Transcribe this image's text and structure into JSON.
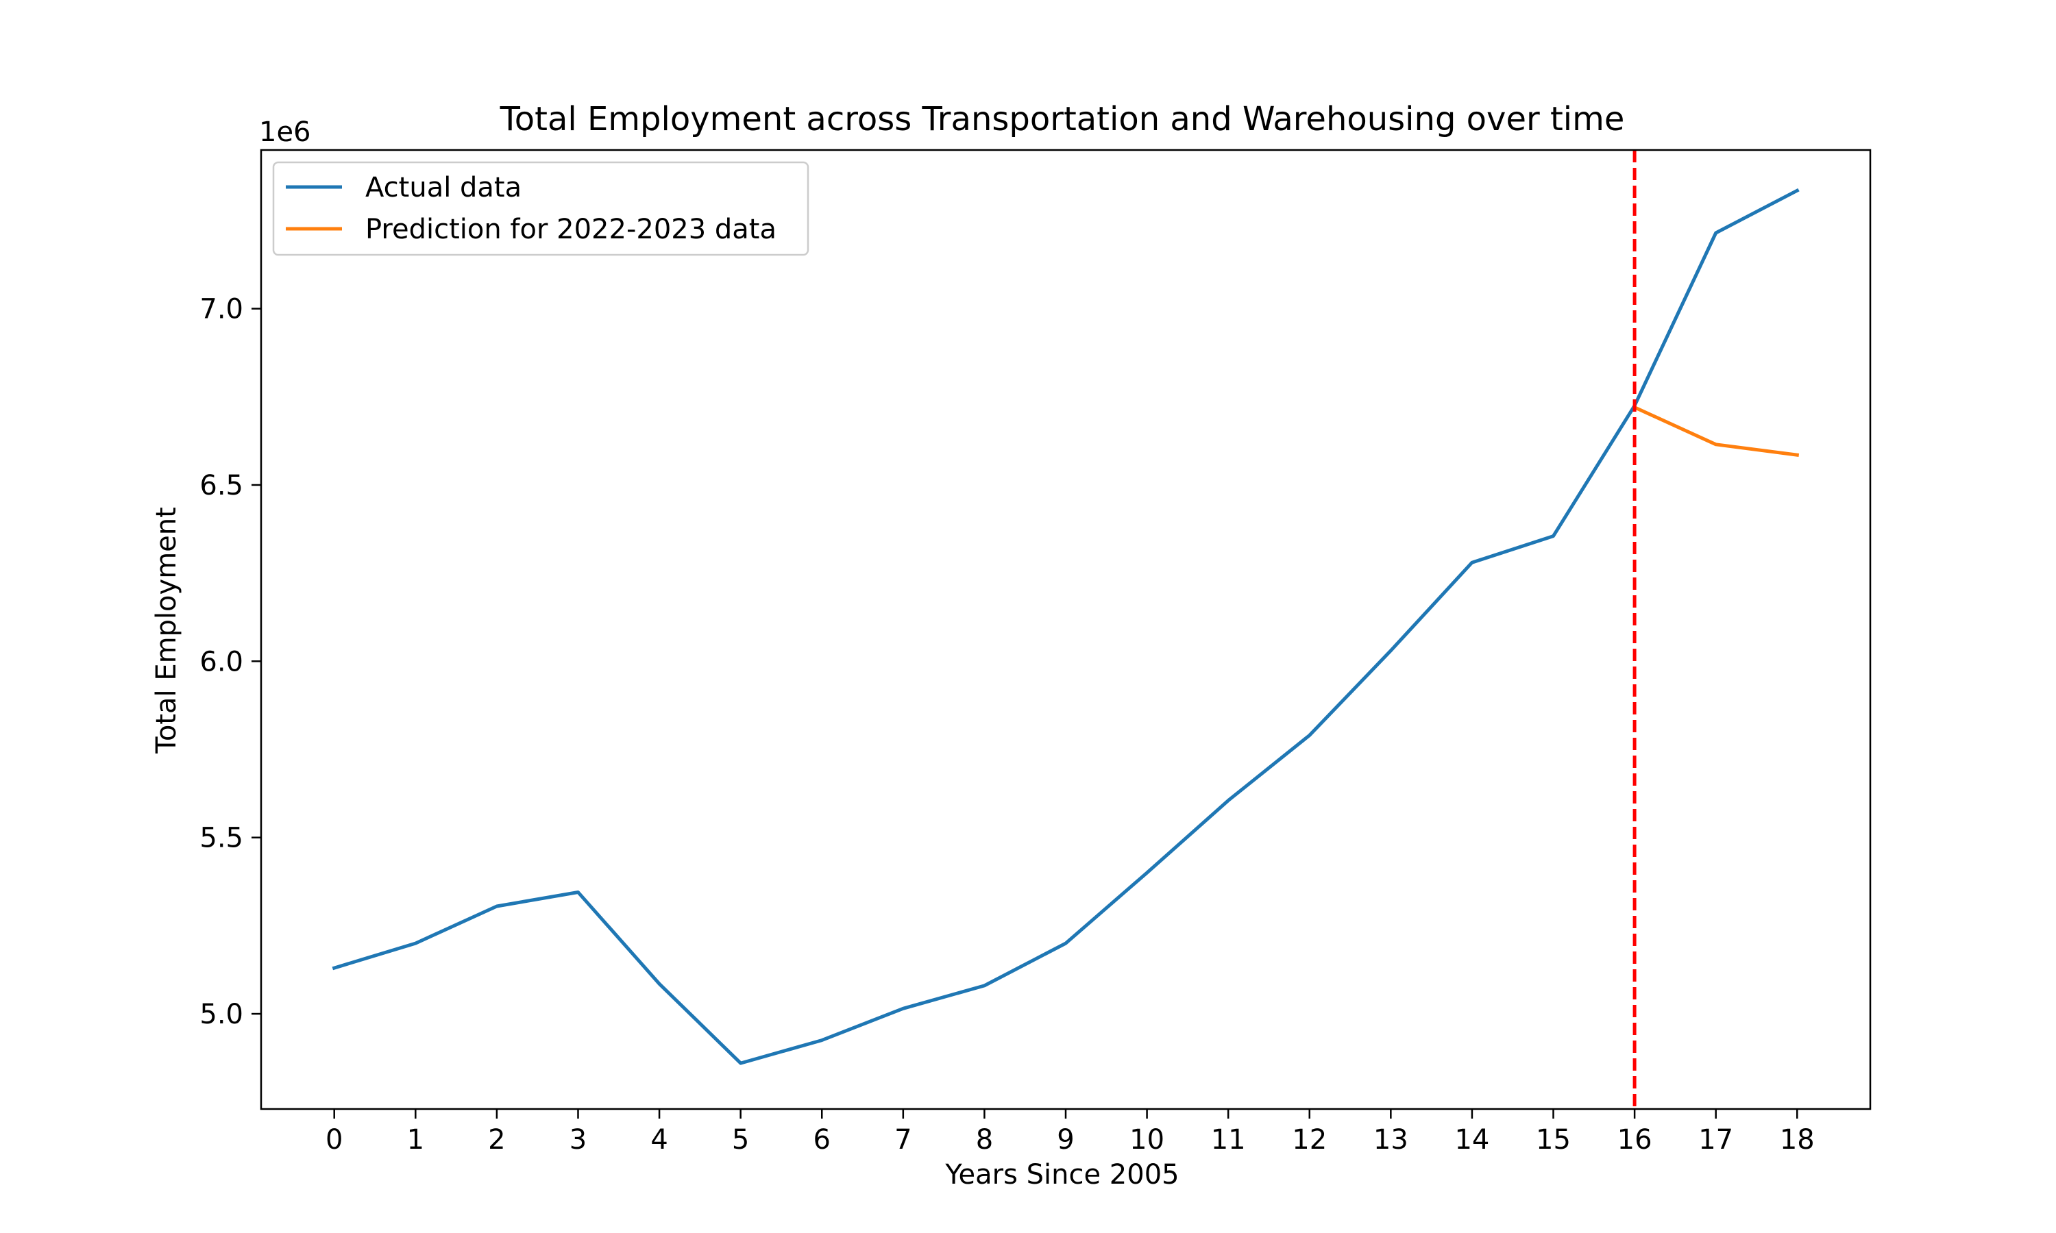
{
  "chart_data": {
    "type": "line",
    "title": "Total Employment across Transportation and Warehousing over time",
    "xlabel": "Years Since 2005",
    "ylabel": "Total Employment",
    "y_scale_label": "1e6",
    "xlim": [
      -0.9,
      18.9
    ],
    "ylim": [
      4.73,
      7.45
    ],
    "x_ticks": [
      0,
      1,
      2,
      3,
      4,
      5,
      6,
      7,
      8,
      9,
      10,
      11,
      12,
      13,
      14,
      15,
      16,
      17,
      18
    ],
    "y_ticks": [
      5.0,
      5.5,
      6.0,
      6.5,
      7.0
    ],
    "y_tick_labels": [
      "5.0",
      "5.5",
      "6.0",
      "6.5",
      "7.0"
    ],
    "legend_position": "top-left",
    "grid": false,
    "series": [
      {
        "name": "Actual data",
        "color": "#1f77b4",
        "x": [
          0,
          1,
          2,
          3,
          4,
          5,
          6,
          7,
          8,
          9,
          10,
          11,
          12,
          13,
          14,
          15,
          16,
          17,
          18
        ],
        "values": [
          5.13,
          5.2,
          5.305,
          5.345,
          5.085,
          4.86,
          4.925,
          5.015,
          5.08,
          5.2,
          5.4,
          5.605,
          5.79,
          6.03,
          6.28,
          6.355,
          6.725,
          7.215,
          7.335
        ]
      },
      {
        "name": "Prediction for 2022-2023 data",
        "color": "#ff7f0e",
        "x": [
          16,
          17,
          18
        ],
        "values": [
          6.72,
          6.615,
          6.585
        ]
      }
    ],
    "vertical_line": {
      "x": 16,
      "color": "#ff0000",
      "style": "dashed"
    }
  }
}
